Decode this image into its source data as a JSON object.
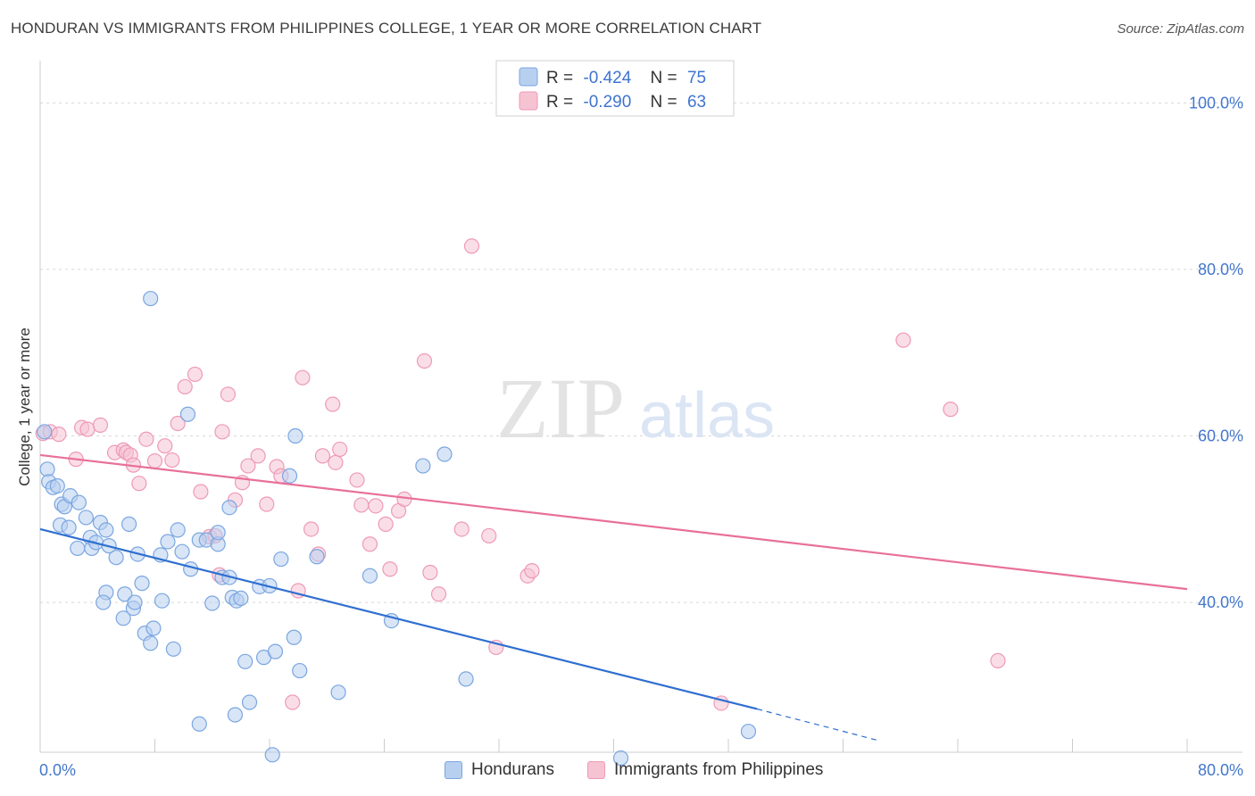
{
  "header": {
    "title": "HONDURAN VS IMMIGRANTS FROM PHILIPPINES COLLEGE, 1 YEAR OR MORE CORRELATION CHART",
    "source": "Source: ZipAtlas.com"
  },
  "watermark": {
    "zip": "ZIP",
    "atlas": "atlas"
  },
  "colors": {
    "blue_fill": "#b8d0f0",
    "blue_stroke": "#7aa6e0",
    "blue_line": "#2f6fd0",
    "pink_fill": "#f6c3d3",
    "pink_stroke": "#ee9ab5",
    "pink_line": "#e8709a",
    "axis_text": "#4477cc",
    "grid": "#d8d8d8"
  },
  "legend": {
    "r_label": "R =",
    "n_label": "N =",
    "entries": [
      {
        "r": "-0.424",
        "n": "75"
      },
      {
        "r": "-0.290",
        "n": "63"
      }
    ]
  },
  "bottom_legend": {
    "hondurans": "Hondurans",
    "philippines": "Immigrants from Philippines"
  },
  "chart_data": {
    "type": "scatter",
    "title": "HONDURAN VS IMMIGRANTS FROM PHILIPPINES COLLEGE, 1 YEAR OR MORE CORRELATION CHART",
    "xlabel": "",
    "ylabel": "College, 1 year or more",
    "xlim": [
      0,
      80
    ],
    "ylim": [
      22,
      104
    ],
    "x_tick_labels": [
      "0.0%",
      "80.0%"
    ],
    "y_ticks": [
      40,
      60,
      80,
      100
    ],
    "y_tick_labels": [
      "40.0%",
      "60.0%",
      "80.0%",
      "100.0%"
    ],
    "grid": true,
    "legend_placement": "top-center",
    "series": [
      {
        "name": "Hondurans",
        "r": -0.424,
        "n": 75,
        "trend": {
          "x0": 0,
          "y0": 48.8,
          "x1": 50,
          "y1": 27.2,
          "dashed_to_x": 58.5,
          "dashed_to_y": 23.4
        },
        "points": [
          [
            0.3,
            60.5
          ],
          [
            0.5,
            56.0
          ],
          [
            0.6,
            54.5
          ],
          [
            0.9,
            53.8
          ],
          [
            1.2,
            54.0
          ],
          [
            1.5,
            51.8
          ],
          [
            1.7,
            51.5
          ],
          [
            1.4,
            49.3
          ],
          [
            2.1,
            52.8
          ],
          [
            2.0,
            49.0
          ],
          [
            2.7,
            52.0
          ],
          [
            2.6,
            46.5
          ],
          [
            3.2,
            50.2
          ],
          [
            3.5,
            47.8
          ],
          [
            3.6,
            46.5
          ],
          [
            3.9,
            47.2
          ],
          [
            4.2,
            49.6
          ],
          [
            4.6,
            48.7
          ],
          [
            4.8,
            46.8
          ],
          [
            5.3,
            45.4
          ],
          [
            6.2,
            49.4
          ],
          [
            4.6,
            41.2
          ],
          [
            4.4,
            40.0
          ],
          [
            5.8,
            38.1
          ],
          [
            5.9,
            41.0
          ],
          [
            6.5,
            39.3
          ],
          [
            6.6,
            40.0
          ],
          [
            6.8,
            45.8
          ],
          [
            7.1,
            42.3
          ],
          [
            7.3,
            36.3
          ],
          [
            7.7,
            35.1
          ],
          [
            7.9,
            36.9
          ],
          [
            8.5,
            40.2
          ],
          [
            8.4,
            45.7
          ],
          [
            8.9,
            47.3
          ],
          [
            9.3,
            34.4
          ],
          [
            9.6,
            48.7
          ],
          [
            9.9,
            46.1
          ],
          [
            10.5,
            44.0
          ],
          [
            11.1,
            47.5
          ],
          [
            11.6,
            47.5
          ],
          [
            12.0,
            39.9
          ],
          [
            12.4,
            47.0
          ],
          [
            12.7,
            43.0
          ],
          [
            13.2,
            43.0
          ],
          [
            13.4,
            40.6
          ],
          [
            13.7,
            40.2
          ],
          [
            14.0,
            40.5
          ],
          [
            14.3,
            32.9
          ],
          [
            14.6,
            28.0
          ],
          [
            15.3,
            41.9
          ],
          [
            15.6,
            33.4
          ],
          [
            16.0,
            42.0
          ],
          [
            16.4,
            34.1
          ],
          [
            16.8,
            45.2
          ],
          [
            17.4,
            55.2
          ],
          [
            17.7,
            35.8
          ],
          [
            18.1,
            31.8
          ],
          [
            19.3,
            45.5
          ],
          [
            20.8,
            29.2
          ],
          [
            23.0,
            43.2
          ],
          [
            24.5,
            37.8
          ],
          [
            26.7,
            56.4
          ],
          [
            28.2,
            57.8
          ],
          [
            29.7,
            30.8
          ],
          [
            10.3,
            62.6
          ],
          [
            13.2,
            51.4
          ],
          [
            7.7,
            76.5
          ],
          [
            12.4,
            48.4
          ],
          [
            17.8,
            60.0
          ],
          [
            11.1,
            25.4
          ],
          [
            13.6,
            26.5
          ],
          [
            16.2,
            21.7
          ],
          [
            40.5,
            21.3
          ],
          [
            49.4,
            24.5
          ]
        ]
      },
      {
        "name": "Immigrants from Philippines",
        "r": -0.29,
        "n": 63,
        "trend": {
          "x0": 0,
          "y0": 57.7,
          "x1": 80,
          "y1": 41.6
        },
        "points": [
          [
            0.2,
            60.3
          ],
          [
            0.7,
            60.5
          ],
          [
            1.3,
            60.2
          ],
          [
            2.5,
            57.2
          ],
          [
            2.9,
            61.0
          ],
          [
            3.3,
            60.8
          ],
          [
            4.2,
            61.3
          ],
          [
            5.2,
            58.0
          ],
          [
            5.8,
            58.3
          ],
          [
            6.0,
            58.0
          ],
          [
            6.3,
            57.7
          ],
          [
            6.5,
            56.5
          ],
          [
            6.9,
            54.3
          ],
          [
            7.4,
            59.6
          ],
          [
            8.0,
            57.0
          ],
          [
            8.7,
            58.8
          ],
          [
            9.2,
            57.1
          ],
          [
            9.6,
            61.5
          ],
          [
            10.1,
            65.9
          ],
          [
            10.8,
            67.4
          ],
          [
            11.2,
            53.3
          ],
          [
            11.8,
            47.9
          ],
          [
            12.2,
            48.0
          ],
          [
            12.5,
            43.3
          ],
          [
            12.7,
            60.5
          ],
          [
            13.1,
            65.0
          ],
          [
            13.6,
            52.3
          ],
          [
            14.1,
            54.4
          ],
          [
            14.5,
            56.4
          ],
          [
            15.2,
            57.6
          ],
          [
            15.8,
            51.8
          ],
          [
            16.5,
            56.3
          ],
          [
            16.8,
            55.2
          ],
          [
            17.6,
            28.0
          ],
          [
            18.0,
            41.4
          ],
          [
            18.3,
            67.0
          ],
          [
            18.9,
            48.8
          ],
          [
            19.4,
            45.8
          ],
          [
            19.7,
            57.6
          ],
          [
            20.4,
            63.8
          ],
          [
            20.6,
            56.8
          ],
          [
            20.9,
            58.4
          ],
          [
            22.1,
            54.7
          ],
          [
            22.4,
            51.7
          ],
          [
            23.0,
            47.0
          ],
          [
            23.4,
            51.6
          ],
          [
            24.1,
            49.4
          ],
          [
            24.4,
            44.0
          ],
          [
            25.0,
            51.0
          ],
          [
            25.4,
            52.4
          ],
          [
            26.8,
            69.0
          ],
          [
            27.2,
            43.6
          ],
          [
            27.8,
            41.0
          ],
          [
            29.4,
            48.8
          ],
          [
            30.1,
            82.8
          ],
          [
            31.3,
            48.0
          ],
          [
            31.8,
            34.6
          ],
          [
            34.0,
            43.2
          ],
          [
            34.3,
            43.8
          ],
          [
            47.5,
            27.9
          ],
          [
            60.2,
            71.5
          ],
          [
            63.5,
            63.2
          ],
          [
            66.8,
            33.0
          ]
        ]
      }
    ]
  }
}
